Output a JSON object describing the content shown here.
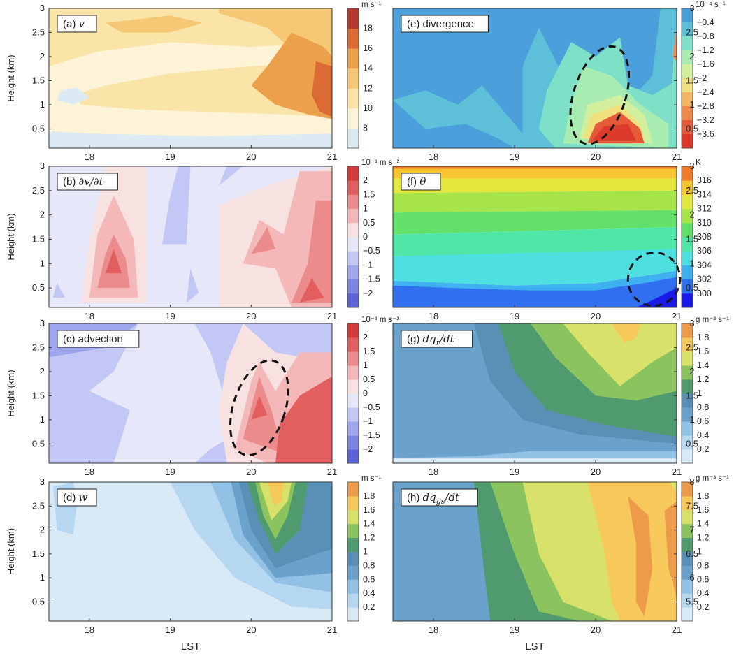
{
  "figure": {
    "xlabel": "LST",
    "ylabel": "Height (km)",
    "x_ticks": [
      "18",
      "19",
      "20",
      "21"
    ],
    "y_ticks": [
      "0.5",
      "1",
      "1.5",
      "2",
      "2.5",
      "3"
    ]
  },
  "chart_data": [
    {
      "id": "a",
      "type": "heatmap",
      "title": "(a) v",
      "title_prefix": "(a)",
      "title_var": "v",
      "xlabel": "LST",
      "ylabel": "Height (km)",
      "xlim": [
        17.5,
        21
      ],
      "ylim": [
        0.1,
        3
      ],
      "colorbar": {
        "unit": "m s⁻¹",
        "levels": [
          8,
          10,
          12,
          14,
          16,
          18
        ],
        "level_labels": [
          "8",
          "10",
          "12",
          "14",
          "16",
          "18"
        ],
        "colors": [
          "#dceaf3",
          "#fdf3d6",
          "#fbe4a8",
          "#f6c875",
          "#eca04b",
          "#dc6a34",
          "#b7372c"
        ]
      },
      "field": "wind speed v, increasing toward 21 LST near 1 km"
    },
    {
      "id": "b",
      "type": "heatmap",
      "title": "(b) ∂v/∂t",
      "title_prefix": "(b)",
      "title_var": "∂v/∂t",
      "xlabel": "LST",
      "ylabel": "Height (km)",
      "xlim": [
        17.5,
        21
      ],
      "ylim": [
        0.1,
        3
      ],
      "colorbar": {
        "unit": "10⁻³ m s⁻²",
        "levels": [
          -2,
          -1.5,
          -1,
          -0.5,
          0,
          0.5,
          1,
          1.5,
          2
        ],
        "level_labels": [
          "−2",
          "−1.5",
          "−1",
          "−0.5",
          "0",
          "0.5",
          "1",
          "1.5",
          "2"
        ],
        "colors": [
          "#5c63d8",
          "#7d85e3",
          "#a0a6ee",
          "#c3c7f5",
          "#e6e7f8",
          "#f8e1e1",
          "#f4b8b8",
          "#ec8b8b",
          "#e35f5f",
          "#d63a3a"
        ]
      },
      "field": "wind tendency; positive maxima near 18.3 LST 1 km and 20 LST 1.5 km"
    },
    {
      "id": "c",
      "type": "heatmap",
      "title": "(c) advection",
      "title_prefix": "(c) advection",
      "title_var": "",
      "xlabel": "LST",
      "ylabel": "Height (km)",
      "xlim": [
        17.5,
        21
      ],
      "ylim": [
        0.1,
        3
      ],
      "colorbar": {
        "unit": "10⁻³ m s⁻²",
        "levels": [
          -2,
          -1.5,
          -1,
          -0.5,
          0,
          0.5,
          1,
          1.5,
          2
        ],
        "level_labels": [
          "−2",
          "−1.5",
          "−1",
          "−0.5",
          "0",
          "0.5",
          "1",
          "1.5",
          "2"
        ],
        "colors": [
          "#5c63d8",
          "#7d85e3",
          "#a0a6ee",
          "#c3c7f5",
          "#e6e7f8",
          "#f8e1e1",
          "#f4b8b8",
          "#ec8b8b",
          "#e35f5f",
          "#d63a3a"
        ]
      },
      "annotation": "dashed ellipse near 20 LST, 0.3–2.2 km"
    },
    {
      "id": "d",
      "type": "heatmap",
      "title": "(d) w",
      "title_prefix": "(d)",
      "title_var": "w",
      "xlabel": "LST",
      "ylabel": "Height (km)",
      "xlim": [
        17.5,
        21
      ],
      "ylim": [
        0.1,
        3
      ],
      "colorbar": {
        "unit": "m s⁻¹",
        "levels": [
          0.2,
          0.4,
          0.6,
          0.8,
          1,
          1.2,
          1.4,
          1.6,
          1.8
        ],
        "level_labels": [
          "0.2",
          "0.4",
          "0.6",
          "0.8",
          "1",
          "1.2",
          "1.4",
          "1.6",
          "1.8"
        ],
        "colors": [
          "#d9eaf7",
          "#b5d7f0",
          "#92c1e6",
          "#6ba2cc",
          "#5a90b5",
          "#4f9a6e",
          "#8bc35e",
          "#d8e26b",
          "#f7c95a",
          "#ed9a4a"
        ]
      },
      "field": "vertical velocity, maximum near 20.2 LST above 2 km"
    },
    {
      "id": "e",
      "type": "heatmap",
      "title": "(e) divergence",
      "title_prefix": "(e) divergence",
      "title_var": "",
      "xlabel": "LST",
      "ylabel": "",
      "xlim": [
        17.5,
        21
      ],
      "ylim": [
        0.1,
        3
      ],
      "colorbar": {
        "unit": "10⁻⁴ s⁻¹",
        "levels": [
          -0.4,
          -0.8,
          -1.2,
          -1.6,
          -2,
          -2.4,
          -2.8,
          -3.2,
          -3.6
        ],
        "level_labels": [
          "−0.4",
          "−0.8",
          "−1.2",
          "−1.6",
          "−2",
          "−2.4",
          "−2.8",
          "−3.2",
          "−3.6"
        ],
        "colors": [
          "#4ba0dc",
          "#5ec0d8",
          "#7fe0c8",
          "#a8ecb2",
          "#d2ef9e",
          "#f0e07e",
          "#f3b563",
          "#ef8a4c",
          "#e65a3a",
          "#dd3a2c"
        ]
      },
      "annotation": "dashed ellipse near 20 LST, 0.2–2.2 km"
    },
    {
      "id": "f",
      "type": "heatmap",
      "title": "(f) θ",
      "title_prefix": "(f)",
      "title_var": "θ",
      "xlabel": "LST",
      "ylabel": "",
      "xlim": [
        17.5,
        21
      ],
      "ylim": [
        0.1,
        3
      ],
      "colorbar": {
        "unit": "K",
        "levels": [
          300,
          302,
          304,
          306,
          308,
          310,
          312,
          314,
          316
        ],
        "level_labels": [
          "300",
          "302",
          "304",
          "306",
          "308",
          "310",
          "312",
          "314",
          "316"
        ],
        "colors": [
          "#1a1ae8",
          "#2f6ff0",
          "#3fb0f0",
          "#4ee0e0",
          "#4fe6a8",
          "#62e06a",
          "#a7e44a",
          "#e3e63c",
          "#f6c52f",
          "#f07b2a"
        ]
      },
      "annotation": "dashed ellipse near 20.8 LST, 0.2–1.2 km"
    },
    {
      "id": "g",
      "type": "heatmap",
      "title": "(g) dq_r/dt",
      "title_prefix": "(g)",
      "title_var": "dq",
      "title_sub": "r",
      "title_tail": "/dt",
      "xlabel": "LST",
      "ylabel": "",
      "xlim": [
        17.5,
        21
      ],
      "ylim": [
        0.1,
        3
      ],
      "colorbar": {
        "unit": "g m⁻³ s⁻¹",
        "levels": [
          0.2,
          0.4,
          0.6,
          0.8,
          1,
          1.2,
          1.4,
          1.6,
          1.8
        ],
        "level_labels": [
          "0.2",
          "0.4",
          "0.6",
          "0.8",
          "1",
          "1.2",
          "1.4",
          "1.6",
          "1.8"
        ],
        "colors": [
          "#d9eaf7",
          "#b5d7f0",
          "#92c1e6",
          "#6ba2cc",
          "#5a90b5",
          "#4f9a6e",
          "#8bc35e",
          "#d8e26b",
          "#f7c95a",
          "#ed9a4a"
        ]
      }
    },
    {
      "id": "h",
      "type": "heatmap",
      "title": "(h) dq_gs/dt",
      "title_prefix": "(h)",
      "title_var": "dq",
      "title_sub": "gs",
      "title_tail": "/dt",
      "xlabel": "LST",
      "ylabel": "",
      "xlim": [
        17.5,
        21
      ],
      "ylim": [
        0.1,
        3
      ],
      "colorbar": {
        "unit": "g m⁻³ s⁻¹",
        "levels": [
          0.2,
          0.4,
          0.6,
          0.8,
          1,
          1.2,
          1.4,
          1.6,
          1.8
        ],
        "level_labels": [
          "0.2",
          "0.4",
          "0.6",
          "0.8",
          "1",
          "1.2",
          "1.4",
          "1.6",
          "1.8"
        ],
        "colors": [
          "#d9eaf7",
          "#b5d7f0",
          "#92c1e6",
          "#6ba2cc",
          "#5a90b5",
          "#4f9a6e",
          "#8bc35e",
          "#d8e26b",
          "#f7c95a",
          "#ed9a4a"
        ],
        "secondary_axis_ticks": [
          "5.5",
          "6",
          "6.5",
          "7",
          "7.5",
          "8"
        ]
      }
    }
  ]
}
